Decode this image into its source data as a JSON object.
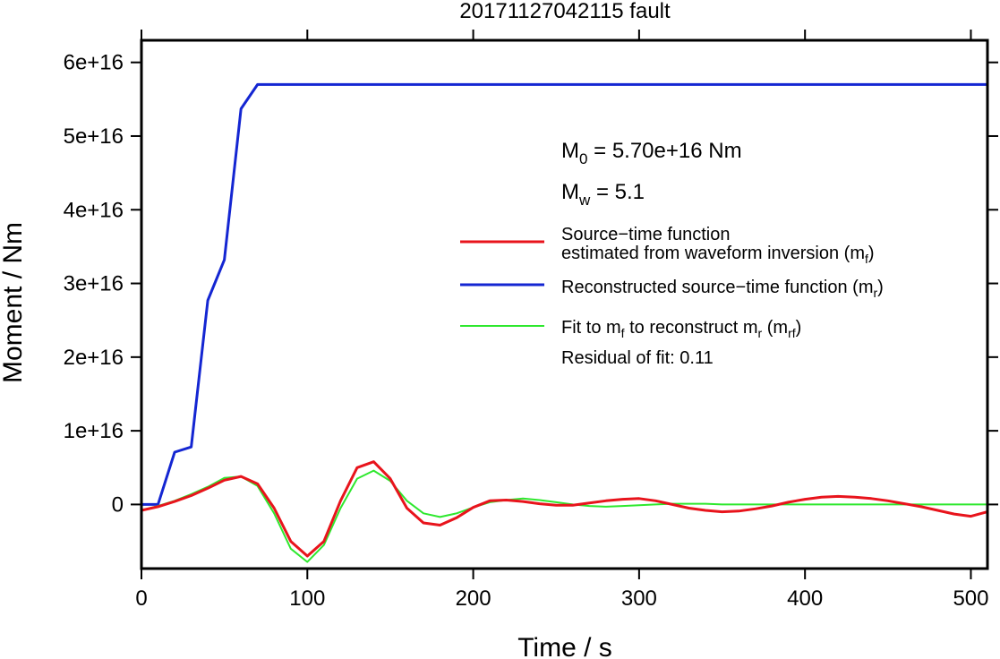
{
  "chart_data": {
    "type": "line",
    "title": "20171127042115 fault",
    "xlabel": "Time / s",
    "ylabel": "Moment / Nm",
    "xlim": [
      0,
      510
    ],
    "ylim": [
      -8700000000000000.0,
      6.3e+16
    ],
    "x_ticks": [
      0,
      100,
      200,
      300,
      400,
      500
    ],
    "x_tick_labels": [
      "0",
      "100",
      "200",
      "300",
      "400",
      "500"
    ],
    "y_ticks": [
      0,
      1e+16,
      2e+16,
      3e+16,
      4e+16,
      5e+16,
      6e+16
    ],
    "y_tick_labels": [
      "0",
      "1e+16",
      "2e+16",
      "3e+16",
      "4e+16",
      "5e+16",
      "6e+16"
    ],
    "grid": false,
    "legend_position": "right",
    "annotations": {
      "m0": {
        "prefix": "M",
        "sub": "0",
        "text": " = 5.70e+16 Nm"
      },
      "mw": {
        "prefix": "M",
        "sub": "w",
        "text": " = 5.1"
      },
      "residual": "Residual of fit: 0.11"
    },
    "series": [
      {
        "key": "mf",
        "legend_line1": "Source−time function",
        "legend_line2": "estimated from waveform inversion (m",
        "legend_sub": "f",
        "legend_close": ")",
        "color": "#e8141c",
        "width": 3,
        "x": [
          0,
          10,
          20,
          30,
          40,
          50,
          60,
          70,
          80,
          90,
          100,
          110,
          120,
          130,
          140,
          150,
          160,
          170,
          180,
          190,
          200,
          210,
          220,
          230,
          240,
          250,
          260,
          270,
          280,
          290,
          300,
          310,
          320,
          330,
          340,
          350,
          360,
          370,
          380,
          390,
          400,
          410,
          420,
          430,
          440,
          450,
          460,
          470,
          480,
          490,
          500,
          510
        ],
        "y": [
          -800000000000000.0,
          -300000000000000.0,
          400000000000000.0,
          1200000000000000.0,
          2200000000000000.0,
          3300000000000000.0,
          3800000000000000.0,
          2800000000000000.0,
          -500000000000000.0,
          -5000000000000000.0,
          -7000000000000000.0,
          -5000000000000000.0,
          500000000000000.0,
          5000000000000000.0,
          5800000000000000.0,
          3500000000000000.0,
          -500000000000000.0,
          -2500000000000000.0,
          -2800000000000000.0,
          -1800000000000000.0,
          -400000000000000.0,
          500000000000000.0,
          600000000000000.0,
          400000000000000.0,
          100000000000000.0,
          -100000000000000.0,
          -100000000000000.0,
          200000000000000.0,
          500000000000000.0,
          700000000000000.0,
          800000000000000.0,
          500000000000000.0,
          0.0,
          -500000000000000.0,
          -800000000000000.0,
          -1000000000000000.0,
          -900000000000000.0,
          -600000000000000.0,
          -200000000000000.0,
          300000000000000.0,
          700000000000000.0,
          1000000000000000.0,
          1100000000000000.0,
          1000000000000000.0,
          800000000000000.0,
          500000000000000.0,
          100000000000000.0,
          -300000000000000.0,
          -800000000000000.0,
          -1300000000000000.0,
          -1600000000000000.0,
          -1000000000000000.0
        ]
      },
      {
        "key": "mr",
        "legend_line1": "Reconstructed source−time function (m",
        "legend_sub": "r",
        "legend_close": ")",
        "color": "#1426d2",
        "width": 3,
        "x": [
          0,
          10,
          20,
          30,
          40,
          50,
          60,
          70,
          510
        ],
        "y": [
          0,
          0,
          7100000000000000.0,
          7800000000000000.0,
          2.77e+16,
          3.32e+16,
          5.37e+16,
          5.7e+16,
          5.7e+16
        ]
      },
      {
        "key": "mrf",
        "legend_line1": "Fit to m",
        "legend_sub1": "f",
        "legend_mid": " to reconstruct m",
        "legend_sub2": "r",
        "legend_open": " (m",
        "legend_sub3": "rf",
        "legend_close": ")",
        "color": "#2ee82e",
        "width": 2,
        "x": [
          0,
          10,
          20,
          30,
          40,
          50,
          60,
          70,
          80,
          90,
          100,
          110,
          120,
          130,
          140,
          150,
          160,
          170,
          180,
          190,
          200,
          210,
          220,
          230,
          240,
          250,
          260,
          270,
          280,
          290,
          300,
          310,
          320,
          330,
          340,
          350,
          360,
          370,
          380,
          390,
          400,
          410,
          420,
          430,
          440,
          450,
          460,
          470,
          480,
          490,
          500,
          510
        ],
        "y": [
          -800000000000000.0,
          -200000000000000.0,
          500000000000000.0,
          1400000000000000.0,
          2400000000000000.0,
          3600000000000000.0,
          3800000000000000.0,
          2500000000000000.0,
          -1200000000000000.0,
          -6000000000000000.0,
          -7800000000000000.0,
          -5500000000000000.0,
          -500000000000000.0,
          3500000000000000.0,
          4600000000000000.0,
          3200000000000000.0,
          500000000000000.0,
          -1200000000000000.0,
          -1700000000000000.0,
          -1200000000000000.0,
          -400000000000000.0,
          300000000000000.0,
          600000000000000.0,
          800000000000000.0,
          600000000000000.0,
          300000000000000.0,
          0.0,
          -200000000000000.0,
          -300000000000000.0,
          -200000000000000.0,
          -100000000000000.0,
          0.0,
          100000000000000.0,
          100000000000000.0,
          100000000000000.0,
          0.0,
          0.0,
          0.0,
          0.0,
          0.0,
          0.0,
          0.0,
          0.0,
          0.0,
          0.0,
          0.0,
          0.0,
          0.0,
          0.0,
          0.0,
          0.0,
          0.0
        ]
      }
    ]
  }
}
